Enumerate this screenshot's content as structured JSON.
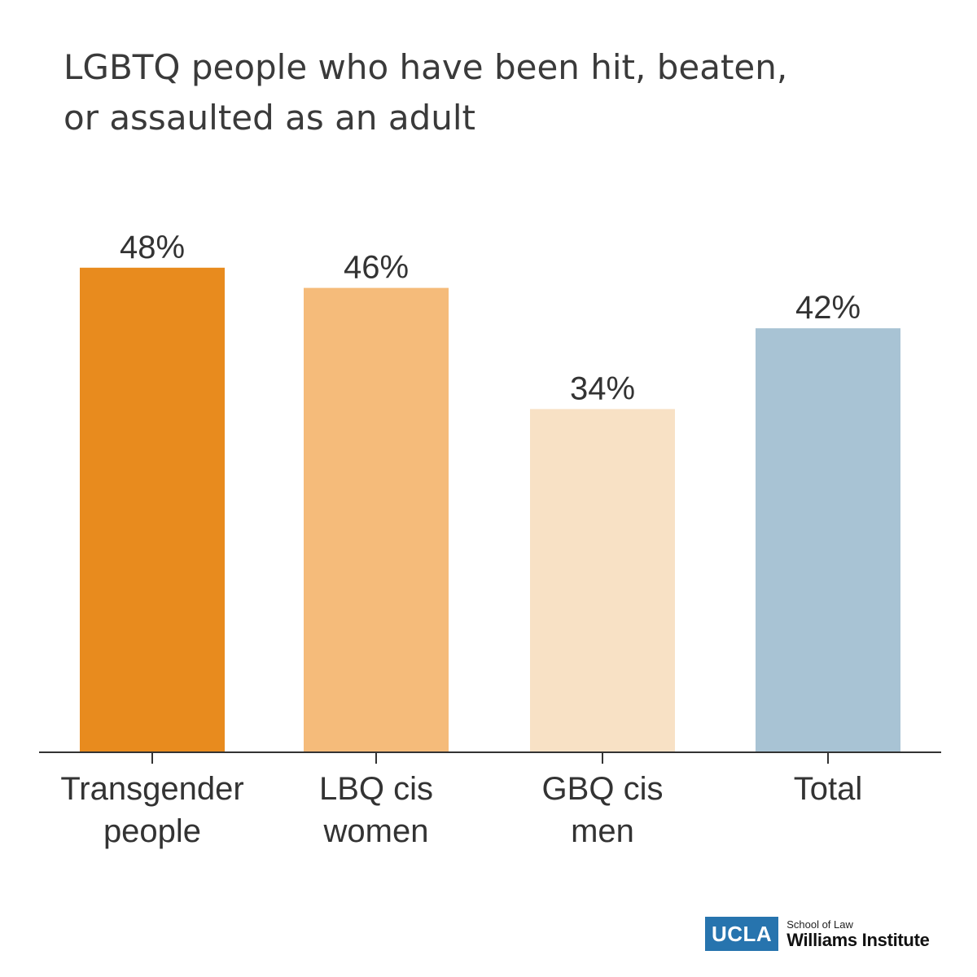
{
  "title_lines": [
    "LGBTQ people who have been hit, beaten,",
    "or assaulted as an adult"
  ],
  "chart_data": {
    "type": "bar",
    "categories": [
      [
        "Transgender",
        "people"
      ],
      [
        "LBQ cis",
        "women"
      ],
      [
        "GBQ cis",
        "men"
      ],
      [
        "Total"
      ]
    ],
    "values": [
      48,
      46,
      34,
      42
    ],
    "value_labels": [
      "48%",
      "46%",
      "34%",
      "42%"
    ],
    "unit": "%",
    "colors": [
      "#e88b1e",
      "#f5bb7a",
      "#f8e1c5",
      "#a8c3d4"
    ],
    "ylim": [
      0,
      50
    ],
    "grid": false,
    "legend": "none"
  },
  "logo": {
    "mark": "UCLA",
    "sub": "School of Law",
    "main": "Williams Institute"
  }
}
